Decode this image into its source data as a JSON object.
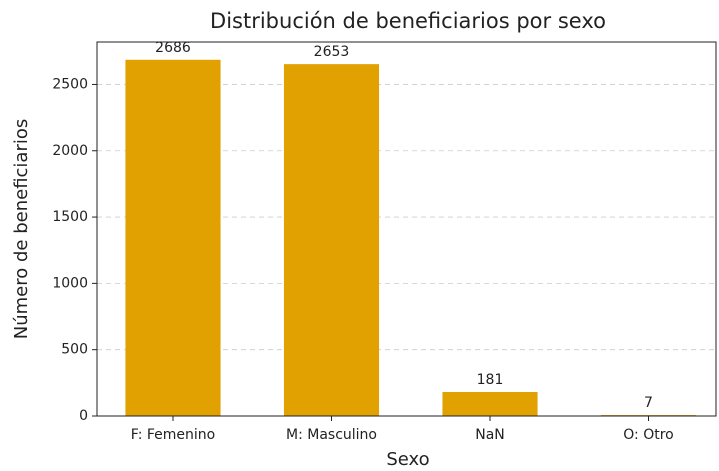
{
  "chart_data": {
    "type": "bar",
    "title": "Distribución de beneficiarios por sexo",
    "x_label": "Sexo",
    "y_label": "Número de beneficiarios",
    "categories": [
      "F: Femenino",
      "M: Masculino",
      "NaN",
      "O: Otro"
    ],
    "values": [
      2686,
      2653,
      181,
      7
    ],
    "color": "#e1a100",
    "ylim": [
      0,
      2820
    ],
    "yticks": [
      0,
      500,
      1000,
      1500,
      2000,
      2500
    ],
    "grid": true
  }
}
